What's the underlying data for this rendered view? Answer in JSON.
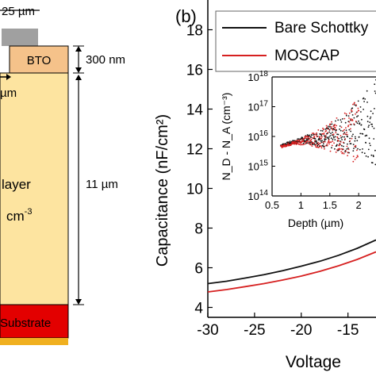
{
  "left_panel": {
    "width_label": "25 µm",
    "bto_label": "BTO",
    "bto_thickness": "300 nm",
    "partial_dim_label": "µm",
    "layer_label": "layer",
    "doping_unit": "cm",
    "doping_exp": "-3",
    "layer_thickness": "11 µm",
    "substrate_label": "Substrate"
  },
  "colors": {
    "metal": "#a0a0a0",
    "bto": "#f5c28a",
    "layer": "#fde4a0",
    "substrate": "#e30000",
    "bottom_contact": "#f0b020",
    "bare": "#111111",
    "moscap": "#d62020"
  },
  "chart_data": [
    {
      "type": "line",
      "panel_label": "(b)",
      "ylabel": "Capacitance (nF/cm²)",
      "xlabel": "Voltage",
      "xlim": [
        -30,
        -12
      ],
      "ylim": [
        3.5,
        19.5
      ],
      "x_ticks": [
        -30,
        -25,
        -20,
        -15
      ],
      "y_ticks": [
        4,
        6,
        8,
        10,
        12,
        14,
        16,
        18
      ],
      "legend": "top-right",
      "series": [
        {
          "name": "Bare Schottky",
          "color": "#111111",
          "x": [
            -30,
            -28,
            -26,
            -24,
            -22,
            -20,
            -18,
            -16,
            -14,
            -12
          ],
          "y": [
            5.2,
            5.32,
            5.48,
            5.65,
            5.85,
            6.08,
            6.33,
            6.63,
            6.98,
            7.4
          ]
        },
        {
          "name": "MOSCAP",
          "color": "#d62020",
          "x": [
            -30,
            -28,
            -26,
            -24,
            -22,
            -20,
            -18,
            -16,
            -14,
            -12
          ],
          "y": [
            4.78,
            4.9,
            5.05,
            5.2,
            5.38,
            5.58,
            5.82,
            6.1,
            6.42,
            6.8
          ]
        }
      ]
    },
    {
      "type": "scatter",
      "position": "inset",
      "ylabel": "N_D - N_A (cm⁻³)",
      "xlabel": "Depth (µm)",
      "xlim": [
        0.5,
        2.3
      ],
      "x_ticks": [
        0.5,
        1,
        1.5,
        2
      ],
      "y_scale": "log",
      "ylim": [
        100000000000000.0,
        1e+18
      ],
      "y_ticks": [
        100000000000000.0,
        1000000000000000.0,
        1e+16,
        1e+17,
        1e+18
      ],
      "y_tick_labels": [
        {
          "base": "10",
          "exp": "14"
        },
        {
          "base": "10",
          "exp": "15"
        },
        {
          "base": "10",
          "exp": "16"
        },
        {
          "base": "10",
          "exp": "17"
        },
        {
          "base": "10",
          "exp": "18"
        }
      ],
      "series": [
        {
          "name": "Bare Schottky",
          "color": "#111111",
          "x": [
            0.65,
            0.8,
            0.95,
            1.1,
            1.25,
            1.4,
            1.55,
            1.7,
            1.85,
            2.0,
            2.15,
            2.3
          ],
          "y": [
            5000000000000000.0,
            6000000000000000.0,
            7000000000000000.0,
            8000000000000000.0,
            8500000000000000.0,
            9000000000000000.0,
            1e+16,
            1.2e+16,
            1.5e+16,
            2e+16,
            2.5e+16,
            3e+16
          ]
        },
        {
          "name": "MOSCAP",
          "color": "#d62020",
          "x": [
            0.65,
            0.8,
            0.95,
            1.1,
            1.25,
            1.4,
            1.55,
            1.7,
            1.85,
            2.0
          ],
          "y": [
            4500000000000000.0,
            5500000000000000.0,
            6500000000000000.0,
            7500000000000000.0,
            8000000000000000.0,
            9000000000000000.0,
            1e+16,
            1.1e+16,
            1.3e+16,
            1.5e+16
          ]
        }
      ]
    }
  ]
}
